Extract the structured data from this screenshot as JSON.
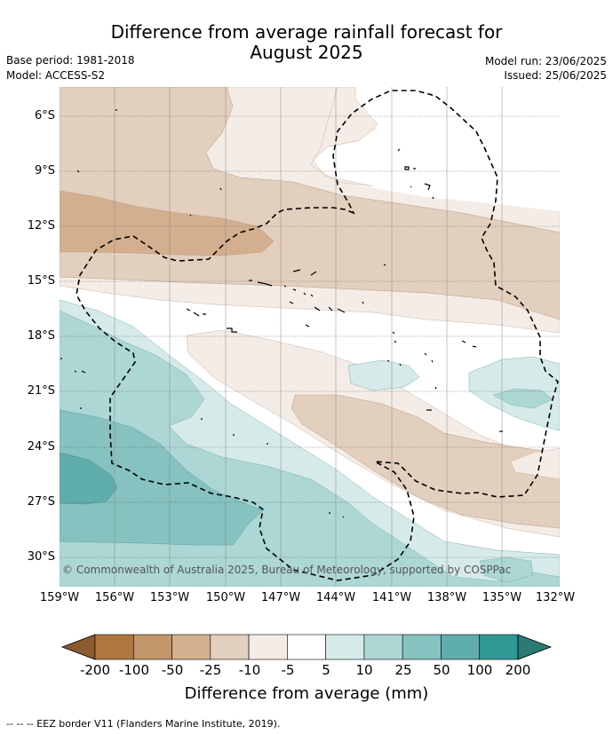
{
  "title_line1": "Difference from average rainfall forecast for",
  "title_line2": "August 2025",
  "base_period": "Base period: 1981-2018",
  "model": "Model: ACCESS-S2",
  "model_run": "Model run: 23/06/2025",
  "issued": "Issued: 25/06/2025",
  "copyright": "© Commonwealth of Australia 2025, Bureau of Meteorology, supported by COSPPac",
  "latitude_labels": [
    "6°S",
    "9°S",
    "12°S",
    "15°S",
    "18°S",
    "21°S",
    "24°S",
    "27°S",
    "30°S"
  ],
  "longitude_labels": [
    "159°W",
    "156°W",
    "153°W",
    "150°W",
    "147°W",
    "144°W",
    "141°W",
    "138°W",
    "135°W",
    "132°W"
  ],
  "colorbar": {
    "label": "Difference from average (mm)",
    "tick_labels": [
      "-200",
      "-100",
      "-50",
      "-25",
      "-10",
      "-5",
      "5",
      "10",
      "25",
      "50",
      "100",
      "200"
    ],
    "bins": [
      {
        "range": "< -200",
        "color": "#8c5a2c"
      },
      {
        "range": "-200 to -100",
        "color": "#b07840"
      },
      {
        "range": "-100 to -50",
        "color": "#c4966b"
      },
      {
        "range": "-50 to -25",
        "color": "#d3af8f"
      },
      {
        "range": "-25 to -10",
        "color": "#e3cfbd"
      },
      {
        "range": "-10 to -5",
        "color": "#f4ece6"
      },
      {
        "range": "-5 to 5",
        "color": "#ffffff"
      },
      {
        "range": "5 to 10",
        "color": "#d6ebe9"
      },
      {
        "range": "10 to 25",
        "color": "#acd7d5"
      },
      {
        "range": "25 to 50",
        "color": "#86c2c0"
      },
      {
        "range": "50 to 100",
        "color": "#5fadac"
      },
      {
        "range": "100 to 200",
        "color": "#2f9894"
      },
      {
        "range": "> 200",
        "color": "#2a7a76"
      }
    ]
  },
  "legend_note": "--  --  -- EEZ border V11 (Flanders Marine Institute, 2019)."
}
